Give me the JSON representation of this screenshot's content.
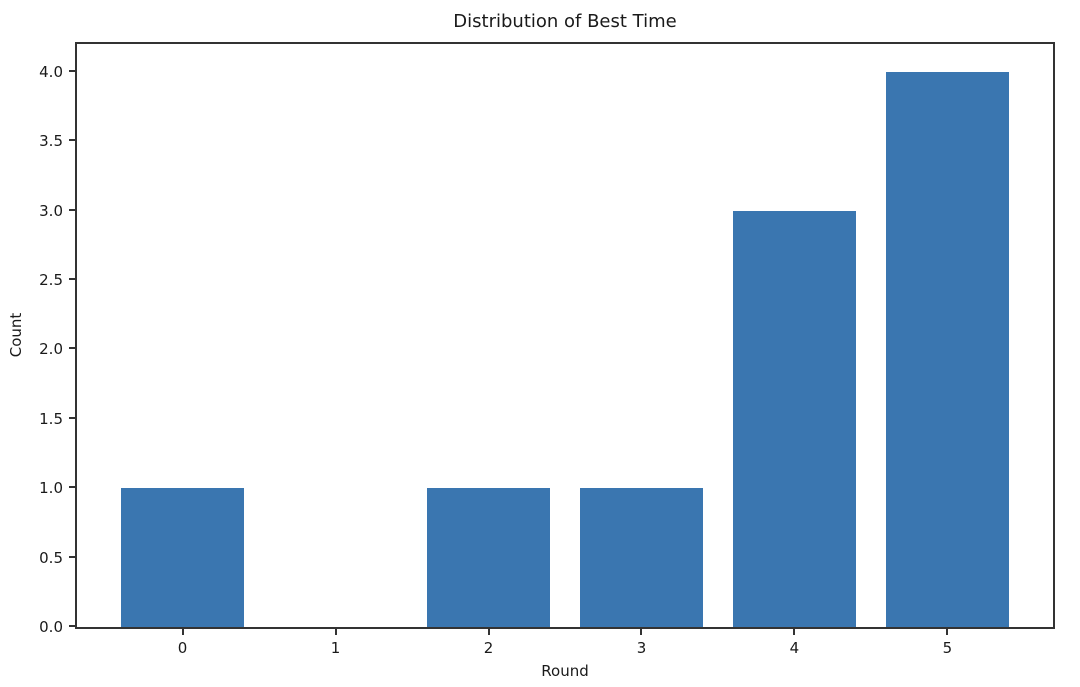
{
  "chart_data": {
    "type": "bar",
    "title": "Distribution of Best Time",
    "xlabel": "Round",
    "ylabel": "Count",
    "categories": [
      "0",
      "1",
      "2",
      "3",
      "4",
      "5"
    ],
    "values": [
      1,
      0,
      1,
      1,
      3,
      4
    ],
    "x_positions": [
      0,
      1,
      2,
      3,
      4,
      5
    ],
    "bar_width": 0.8,
    "bar_color": "#3a76b0",
    "xlim": [
      -0.69,
      5.69
    ],
    "ylim": [
      0,
      4.2
    ],
    "yticks": [
      0.0,
      0.5,
      1.0,
      1.5,
      2.0,
      2.5,
      3.0,
      3.5,
      4.0
    ],
    "ytick_labels": [
      "0.0",
      "0.5",
      "1.0",
      "1.5",
      "2.0",
      "2.5",
      "3.0",
      "3.5",
      "4.0"
    ],
    "grid": false,
    "legend": null,
    "spine_color": "#333333",
    "text_color": "#1a1a1a",
    "background_color": "#ffffff"
  }
}
